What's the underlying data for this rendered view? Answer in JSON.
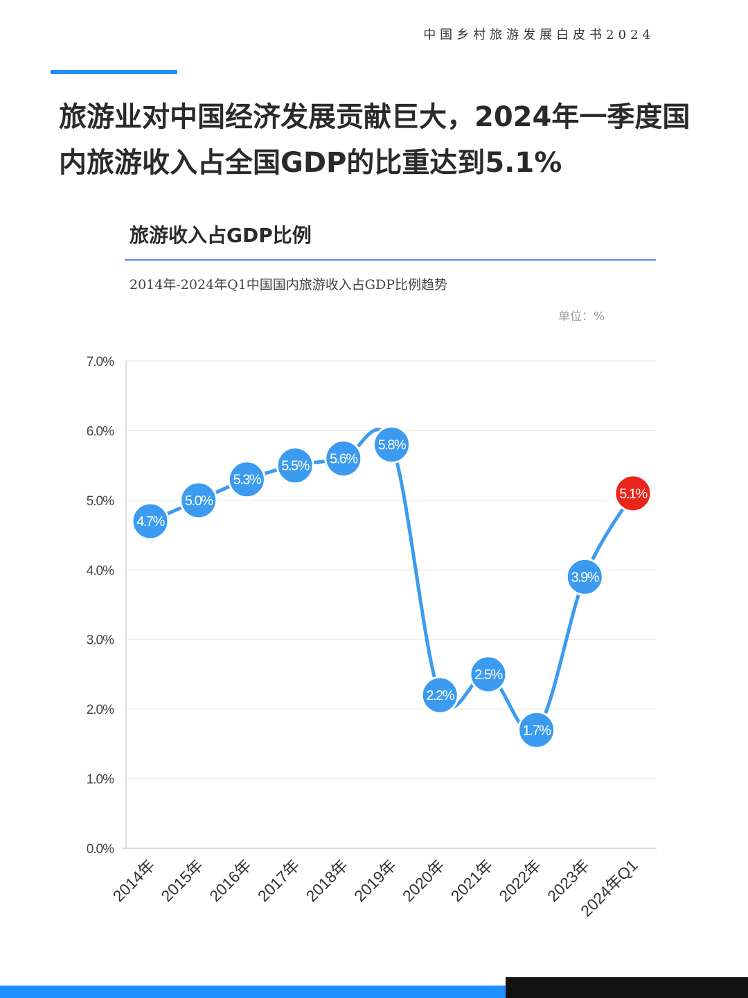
{
  "report_header": "中国乡村旅游发展白皮书2024",
  "headline": "旅游业对中国经济发展贡献巨大，2024年一季度国内旅游收入占全国GDP的比重达到5.1%",
  "colors": {
    "accent": "#1e90ff",
    "highlight": "#e8261a",
    "line": "#3a9bf0"
  },
  "chart_data": {
    "type": "line",
    "title": "旅游收入占GDP比例",
    "subtitle": "2014年-2024年Q1中国国内旅游收入占GDP比例趋势",
    "unit_label": "单位：%",
    "categories": [
      "2014年",
      "2015年",
      "2016年",
      "2017年",
      "2018年",
      "2019年",
      "2020年",
      "2021年",
      "2022年",
      "2023年",
      "2024年Q1"
    ],
    "values": [
      4.7,
      5.0,
      5.3,
      5.5,
      5.6,
      5.8,
      2.2,
      2.5,
      1.7,
      3.9,
      5.1
    ],
    "data_labels": [
      "4.7%",
      "5.0%",
      "5.3%",
      "5.5%",
      "5.6%",
      "5.8%",
      "2.2%",
      "2.5%",
      "1.7%",
      "3.9%",
      "5.1%"
    ],
    "highlight_index": 10,
    "ylim": [
      0,
      7
    ],
    "y_ticks": [
      0,
      1,
      2,
      3,
      4,
      5,
      6,
      7
    ],
    "y_tick_labels": [
      "0.0%",
      "1.0%",
      "2.0%",
      "3.0%",
      "4.0%",
      "5.0%",
      "6.0%",
      "7.0%"
    ],
    "grid": true
  }
}
